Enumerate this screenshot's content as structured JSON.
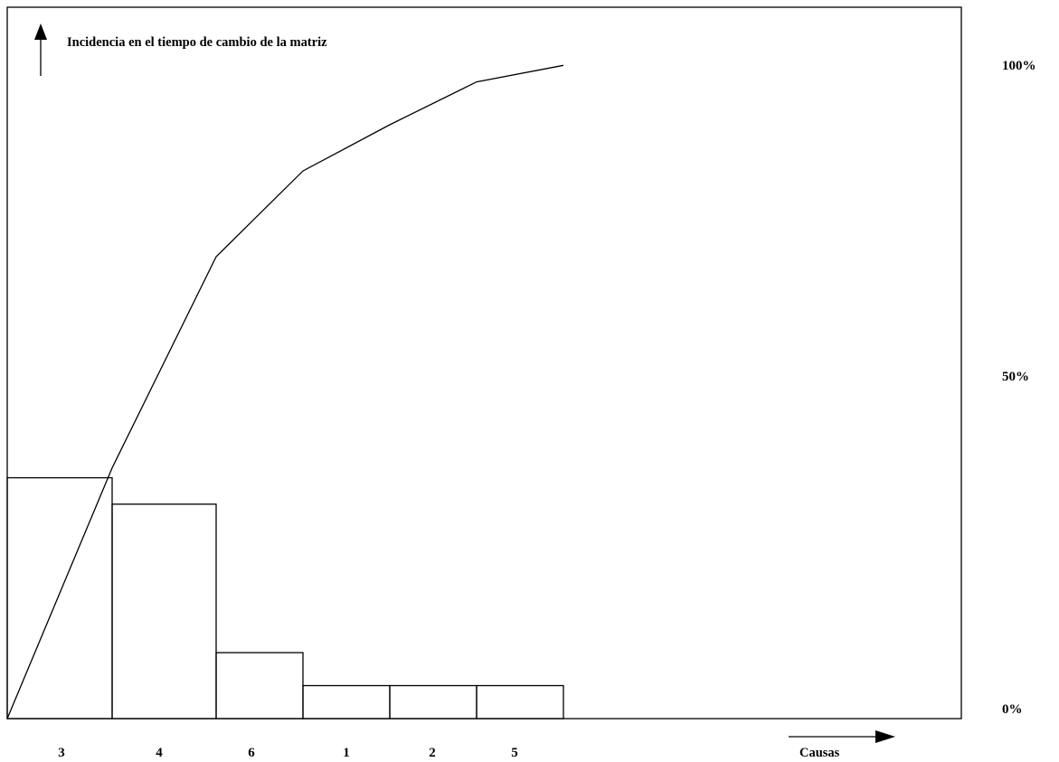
{
  "chart_data": {
    "type": "bar",
    "title": "Incidencia en  el tiempo de cambio de la matriz",
    "xlabel": "Causas",
    "ylabel": "",
    "categories": [
      "3",
      "4",
      "6",
      "1",
      "2",
      "5"
    ],
    "values": [
      36.5,
      32.5,
      10,
      5,
      5,
      5
    ],
    "cumulative": [
      0,
      38,
      70,
      83,
      90,
      96.5,
      99
    ],
    "right_axis_ticks": [
      "100%",
      "50%",
      "0%"
    ],
    "ylim": [
      0,
      100
    ],
    "grid": false,
    "legend": "none"
  },
  "colors": {
    "stroke": "#000000",
    "background": "#ffffff"
  },
  "icons": {
    "y_axis_arrow": "arrow-up-icon",
    "x_axis_arrow": "arrow-right-icon"
  }
}
